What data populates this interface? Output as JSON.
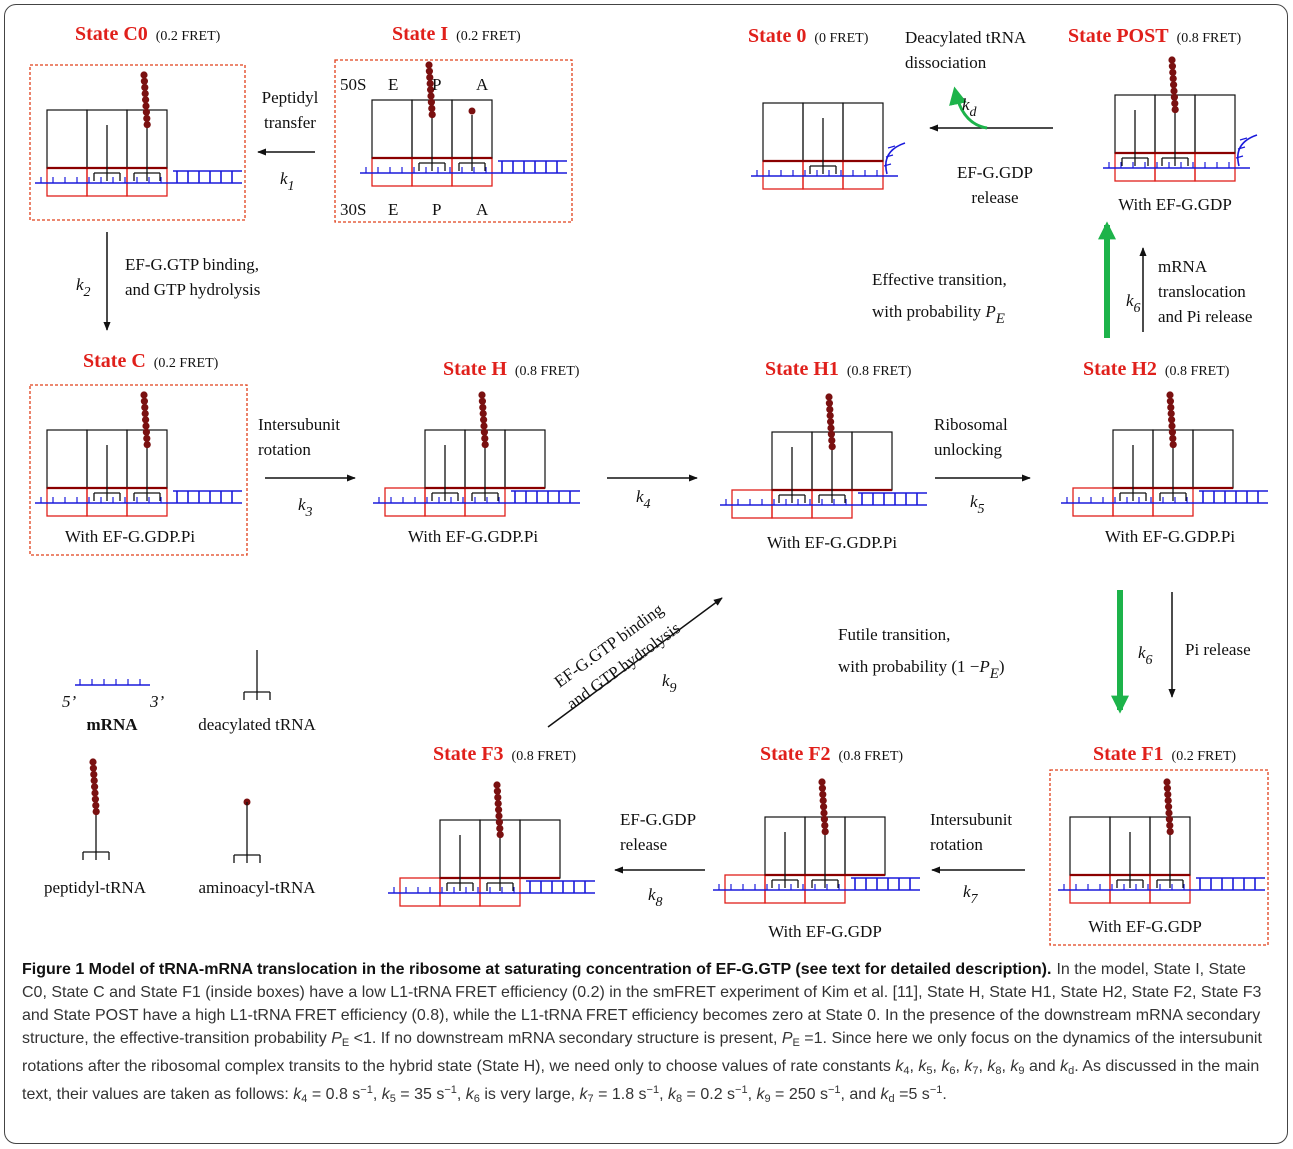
{
  "states": [
    {
      "name": "State C0",
      "fret": "(0.2 FRET)"
    },
    {
      "name": "State I",
      "fret": "(0.2 FRET)",
      "site_labels": {
        "top": [
          "50S",
          "E",
          "P",
          "A"
        ],
        "bottom": [
          "30S",
          "E",
          "P",
          "A"
        ]
      }
    },
    {
      "name": "State 0",
      "fret": "(0 FRET)"
    },
    {
      "name": "State POST",
      "fret": "(0.8 FRET)",
      "note": "With EF-G.GDP"
    },
    {
      "name": "State C",
      "fret": "(0.2 FRET)",
      "note": "With EF-G.GDP.Pi"
    },
    {
      "name": "State H",
      "fret": "(0.8 FRET)",
      "note": "With EF-G.GDP.Pi"
    },
    {
      "name": "State H1",
      "fret": "(0.8 FRET)",
      "note": "With EF-G.GDP.Pi"
    },
    {
      "name": "State H2",
      "fret": "(0.8 FRET)",
      "note": "With EF-G.GDP.Pi"
    },
    {
      "name": "State F3",
      "fret": "(0.8 FRET)"
    },
    {
      "name": "State F2",
      "fret": "(0.8 FRET)",
      "note": "With EF-G.GDP"
    },
    {
      "name": "State F1",
      "fret": "(0.2 FRET)",
      "note": "With EF-G.GDP"
    }
  ],
  "transitions": [
    {
      "label": [
        "Peptidyl",
        "transfer"
      ],
      "rate": {
        "symbol": "k",
        "subscript": "1"
      }
    },
    {
      "label": [
        "EF-G.GTP binding,",
        "and GTP hydrolysis"
      ],
      "rate": {
        "symbol": "k",
        "subscript": "2"
      }
    },
    {
      "label": [
        "Intersubunit",
        "rotation"
      ],
      "rate": {
        "symbol": "k",
        "subscript": "3"
      }
    },
    {
      "rate": {
        "symbol": "k",
        "subscript": "4"
      }
    },
    {
      "label": [
        "Ribosomal",
        "unlocking"
      ],
      "rate": {
        "symbol": "k",
        "subscript": "5"
      }
    },
    {
      "label": [
        "mRNA",
        "translocation",
        "and Pi release"
      ],
      "rate": {
        "symbol": "k",
        "subscript": "6"
      }
    },
    {
      "label": [
        "Effective transition,",
        "with probability "
      ],
      "probability": {
        "symbol": "P",
        "subscript": "E"
      }
    },
    {
      "label": [
        "EF-G.GDP",
        "release"
      ]
    },
    {
      "label": [
        "Deacylated tRNA",
        "dissociation"
      ],
      "rate": {
        "symbol": "k",
        "subscript": "d"
      }
    },
    {
      "label": [
        "Futile transition,",
        "with probability (1 −"
      ],
      "probability": {
        "symbol": "P",
        "subscript": "E"
      },
      "suffix": ")"
    },
    {
      "label": [
        "Pi release"
      ],
      "rate": {
        "symbol": "k",
        "subscript": "6"
      }
    },
    {
      "label": [
        "Intersubunit",
        "rotation"
      ],
      "rate": {
        "symbol": "k",
        "subscript": "7"
      }
    },
    {
      "label": [
        "EF-G.GDP",
        "release"
      ],
      "rate": {
        "symbol": "k",
        "subscript": "8"
      }
    },
    {
      "label": [
        "EF-G.GTP binding",
        "and GTP hydrolysis"
      ],
      "rate": {
        "symbol": "k",
        "subscript": "9"
      }
    }
  ],
  "legend": {
    "mrna_ends": [
      "5’",
      "3’"
    ],
    "items": [
      "mRNA",
      "deacylated tRNA",
      "peptidyl-tRNA",
      "aminoacyl-tRNA"
    ]
  },
  "caption": {
    "title": "Figure 1 Model of tRNA-mRNA translocation in the ribosome at saturating concentration of EF-G.GTP (see text for detailed description).",
    "body": [
      "In the model, State I, State C0, State C and State F1 (inside boxes) have a low L1-tRNA FRET efficiency (0.2) in the smFRET experiment of Kim et al. [11], State H, State H1, State H2, State F2, State F3 and State POST have a high L1-tRNA FRET efficiency (0.8), while the L1-tRNA FRET efficiency becomes zero at State 0. In the presence of the downstream mRNA secondary structure, the effective-transition probability ",
      {
        "symbol": "P",
        "subscript": "E"
      },
      " <1. If no downstream mRNA secondary structure is present, ",
      {
        "symbol": "P",
        "subscript": "E"
      },
      " =1. Since here we only focus on the dynamics of the intersubunit rotations after the ribosomal complex transits to the hybrid state (State H), we need only to choose values of rate constants ",
      {
        "symbol": "k",
        "subscript": "4"
      },
      ", ",
      {
        "symbol": "k",
        "subscript": "5"
      },
      ", ",
      {
        "symbol": "k",
        "subscript": "6"
      },
      ", ",
      {
        "symbol": "k",
        "subscript": "7"
      },
      ", ",
      {
        "symbol": "k",
        "subscript": "8"
      },
      ", ",
      {
        "symbol": "k",
        "subscript": "9"
      },
      " and ",
      {
        "symbol": "k",
        "subscript": "d"
      },
      ". As discussed in the main text, their values are taken as follows: ",
      {
        "symbol": "k",
        "subscript": "4"
      },
      " = 0.8 s",
      {
        "superscript": "−1"
      },
      ", ",
      {
        "symbol": "k",
        "subscript": "5"
      },
      " = 35 s",
      {
        "superscript": "−1"
      },
      ", ",
      {
        "symbol": "k",
        "subscript": "6"
      },
      " is very large, ",
      {
        "symbol": "k",
        "subscript": "7"
      },
      " = 1.8 s",
      {
        "superscript": "−1"
      },
      ", ",
      {
        "symbol": "k",
        "subscript": "8"
      },
      " = 0.2 s",
      {
        "superscript": "−1"
      },
      ", ",
      {
        "symbol": "k",
        "subscript": "9"
      },
      " = 250 s",
      {
        "superscript": "−1"
      },
      ", and ",
      {
        "symbol": "k",
        "subscript": "d"
      },
      " =5 s",
      {
        "superscript": "−1"
      },
      "."
    ]
  }
}
